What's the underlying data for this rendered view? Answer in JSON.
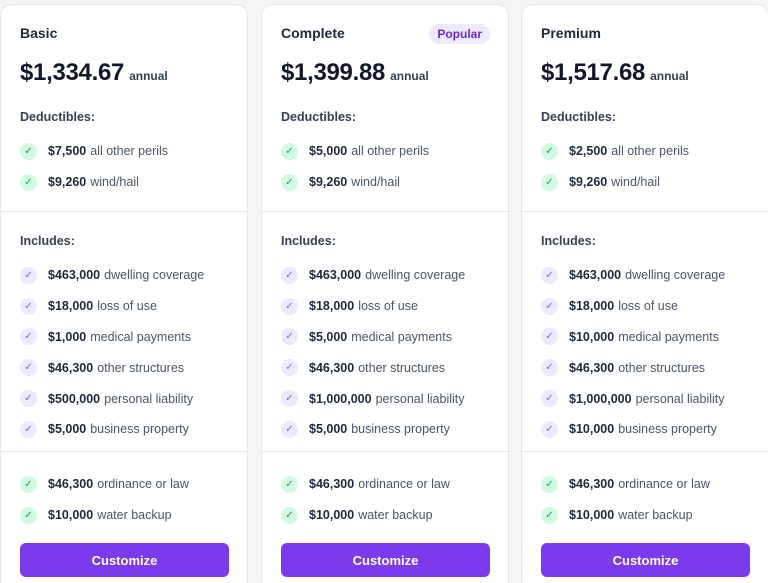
{
  "plans": [
    {
      "name": "Basic",
      "badge": "",
      "price": "$1,334.67",
      "period": "annual",
      "deductibles_label": "Deductibles:",
      "deductibles": [
        {
          "amount": "$7,500",
          "text": "all other perils"
        },
        {
          "amount": "$9,260",
          "text": "wind/hail"
        }
      ],
      "includes_label": "Includes:",
      "includes": [
        {
          "amount": "$463,000",
          "text": "dwelling coverage"
        },
        {
          "amount": "$18,000",
          "text": "loss of use"
        },
        {
          "amount": "$1,000",
          "text": "medical payments"
        },
        {
          "amount": "$46,300",
          "text": "other structures"
        },
        {
          "amount": "$500,000",
          "text": "personal liability"
        },
        {
          "amount": "$5,000",
          "text": "business property"
        }
      ],
      "extras": [
        {
          "amount": "$46,300",
          "text": "ordinance or law"
        },
        {
          "amount": "$10,000",
          "text": "water backup"
        }
      ],
      "button_label": "Customize"
    },
    {
      "name": "Complete",
      "badge": "Popular",
      "price": "$1,399.88",
      "period": "annual",
      "deductibles_label": "Deductibles:",
      "deductibles": [
        {
          "amount": "$5,000",
          "text": "all other perils"
        },
        {
          "amount": "$9,260",
          "text": "wind/hail"
        }
      ],
      "includes_label": "Includes:",
      "includes": [
        {
          "amount": "$463,000",
          "text": "dwelling coverage"
        },
        {
          "amount": "$18,000",
          "text": "loss of use"
        },
        {
          "amount": "$5,000",
          "text": "medical payments"
        },
        {
          "amount": "$46,300",
          "text": "other structures"
        },
        {
          "amount": "$1,000,000",
          "text": "personal liability"
        },
        {
          "amount": "$5,000",
          "text": "business property"
        }
      ],
      "extras": [
        {
          "amount": "$46,300",
          "text": "ordinance or law"
        },
        {
          "amount": "$10,000",
          "text": "water backup"
        }
      ],
      "button_label": "Customize"
    },
    {
      "name": "Premium",
      "badge": "",
      "price": "$1,517.68",
      "period": "annual",
      "deductibles_label": "Deductibles:",
      "deductibles": [
        {
          "amount": "$2,500",
          "text": "all other perils"
        },
        {
          "amount": "$9,260",
          "text": "wind/hail"
        }
      ],
      "includes_label": "Includes:",
      "includes": [
        {
          "amount": "$463,000",
          "text": "dwelling coverage"
        },
        {
          "amount": "$18,000",
          "text": "loss of use"
        },
        {
          "amount": "$10,000",
          "text": "medical payments"
        },
        {
          "amount": "$46,300",
          "text": "other structures"
        },
        {
          "amount": "$1,000,000",
          "text": "personal liability"
        },
        {
          "amount": "$10,000",
          "text": "business property"
        }
      ],
      "extras": [
        {
          "amount": "$46,300",
          "text": "ordinance or law"
        },
        {
          "amount": "$10,000",
          "text": "water backup"
        }
      ],
      "button_label": "Customize"
    }
  ],
  "icons": {
    "deductible": "check-icon",
    "include": "check-icon",
    "extra": "check-icon"
  },
  "colors": {
    "accent": "#7c3aed",
    "check_green": "#16a34a",
    "check_purple": "#8b5cf6",
    "badge_bg": "#ede9fe"
  }
}
